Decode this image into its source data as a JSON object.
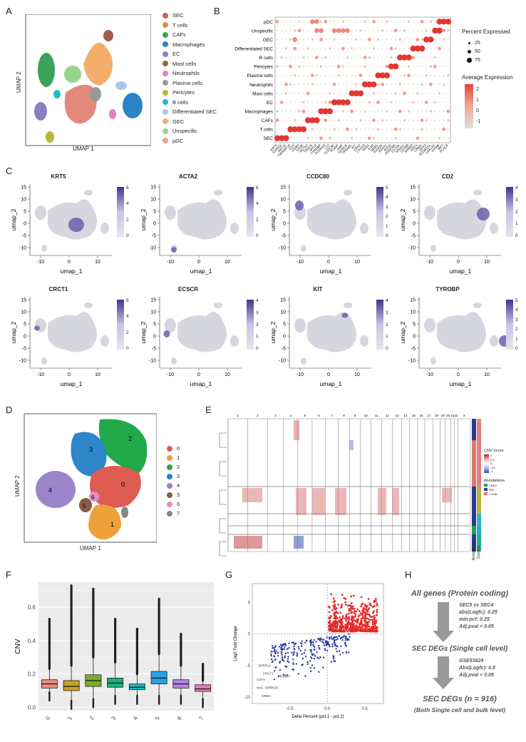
{
  "panels": {
    "A": "A",
    "B": "B",
    "C": "C",
    "D": "D",
    "E": "E",
    "F": "F",
    "G": "G",
    "H": "H"
  },
  "panelA": {
    "xlabel": "UMAP 1",
    "ylabel": "UMAP 2",
    "legend": [
      {
        "label": "SEC",
        "color": "#d9584e"
      },
      {
        "label": "T cells",
        "color": "#e7893c"
      },
      {
        "label": "CAFs",
        "color": "#3aa35a"
      },
      {
        "label": "Macrophages",
        "color": "#2b85c4"
      },
      {
        "label": "EC",
        "color": "#8b7fc2"
      },
      {
        "label": "Mast cells",
        "color": "#9b5f4a"
      },
      {
        "label": "Neutrophils",
        "color": "#e77fc0"
      },
      {
        "label": "Plasma cells",
        "color": "#999999"
      },
      {
        "label": "Pericytes",
        "color": "#b9b736"
      },
      {
        "label": "B cells",
        "color": "#27b8c8"
      },
      {
        "label": "Differentiated SEC",
        "color": "#a9c7ea"
      },
      {
        "label": "GEC",
        "color": "#f4ae6c"
      },
      {
        "label": "Unspecific",
        "color": "#97d48c"
      },
      {
        "label": "pDC",
        "color": "#f09f96"
      }
    ]
  },
  "panelB": {
    "rows": [
      "pDC",
      "Unspecific",
      "GEC",
      "Differentiated SEC",
      "B cells",
      "Pericytes",
      "Plasma cells",
      "Neutrophils",
      "Mast cells",
      "EC",
      "Macrophages",
      "CAFs",
      "T cells",
      "SEC"
    ],
    "genes": [
      "KRT5",
      "S100A2",
      "KRT15",
      "TNFRSF18",
      "CD2",
      "CD3D",
      "CD3E",
      "ACTA2",
      "TAGLN",
      "MYL9",
      "TYROBP",
      "FCER1G",
      "LYZ",
      "CCDC80",
      "PLVAP",
      "VWF",
      "ECSCR",
      "TPSAB1",
      "KIT",
      "CPA3",
      "CXCL8",
      "G0S2",
      "IL1B",
      "MZB1",
      "JCHAIN",
      "IGHG1",
      "RGS5",
      "PDGFRB",
      "CD79A",
      "MS4A1",
      "CD79B",
      "SPRR3",
      "KRT4",
      "CRNN",
      "GPX3",
      "SCGB1A1",
      "LGALS4",
      "GZMB",
      "IRF7",
      "PLAC8"
    ],
    "percent_title": "Percent Expressed",
    "percent_levels": [
      "25",
      "50",
      "75"
    ],
    "expr_title": "Average Expression",
    "expr_ticks": [
      "2",
      "1",
      "0",
      "-1"
    ]
  },
  "panelC": {
    "genes": [
      {
        "name": "KRT5",
        "ticks": [
          "6",
          "4",
          "2",
          "0"
        ]
      },
      {
        "name": "ACTA2",
        "ticks": [
          "6",
          "4",
          "2",
          "0"
        ]
      },
      {
        "name": "CCDC80",
        "ticks": [
          "5",
          "4",
          "3",
          "2",
          "1",
          "0"
        ]
      },
      {
        "name": "CD2",
        "ticks": [
          "4",
          "3",
          "2",
          "1",
          "0"
        ]
      },
      {
        "name": "CRCT1",
        "ticks": [
          "6",
          "4",
          "2",
          "0"
        ]
      },
      {
        "name": "ECSCR",
        "ticks": [
          "4",
          "3",
          "2",
          "1",
          "0"
        ]
      },
      {
        "name": "KIT",
        "ticks": [
          "4",
          "3",
          "2",
          "1",
          "0"
        ]
      },
      {
        "name": "TYROBP",
        "ticks": [
          "5",
          "4",
          "3",
          "2",
          "1",
          "0"
        ]
      }
    ],
    "xlabel": "umap_1",
    "ylabel": "umap_2",
    "yticks": [
      "15",
      "10",
      "5",
      "0",
      "-5",
      "-10"
    ],
    "xticks": [
      "-10",
      "0",
      "10"
    ]
  },
  "panelD": {
    "xlabel": "UMAP 1",
    "ylabel": "UMAP 2",
    "clusters": [
      {
        "id": "0",
        "color": "#de5b52"
      },
      {
        "id": "1",
        "color": "#f0a03a"
      },
      {
        "id": "2",
        "color": "#22aa4a"
      },
      {
        "id": "3",
        "color": "#2c86c7"
      },
      {
        "id": "4",
        "color": "#9b84c8"
      },
      {
        "id": "5",
        "color": "#8a5a48"
      },
      {
        "id": "6",
        "color": "#e58ec4"
      },
      {
        "id": "7",
        "color": "#7f8a80"
      }
    ]
  },
  "panelE": {
    "chromosomes": [
      "1",
      "2",
      "3",
      "4",
      "5",
      "6",
      "7",
      "8",
      "9",
      "10",
      "11",
      "12",
      "13",
      "14",
      "15",
      "16",
      "17",
      "18",
      "19",
      "20",
      "21",
      "22",
      "X"
    ],
    "legend_title": "CNV Score",
    "legend_ticks": [
      "1",
      "0.5",
      "0",
      "-0.5",
      "-1"
    ],
    "annot_title": "Annotations",
    "annot_items": [
      "GSE0",
      "SEC",
      "T cells"
    ],
    "bottom_labels": [
      "Annotations",
      "Clusters"
    ]
  },
  "chart_data": [
    {
      "type": "box",
      "title": "",
      "xlabel": "",
      "ylabel": "CNV",
      "ylim": [
        -0.02,
        0.75
      ],
      "yticks": [
        "0.0",
        "0.2",
        "0.4",
        "0.6"
      ],
      "categories": [
        "0",
        "1",
        "2",
        "3",
        "4",
        "5",
        "6",
        "7"
      ],
      "colors": [
        "#ef8a80",
        "#c8a026",
        "#7cad28",
        "#20b07a",
        "#1ab8c0",
        "#26a2e8",
        "#b583e6",
        "#ef76c4"
      ],
      "series": [
        {
          "name": "q1",
          "values": [
            0.115,
            0.1,
            0.125,
            0.12,
            0.105,
            0.14,
            0.115,
            0.095
          ]
        },
        {
          "name": "median",
          "values": [
            0.14,
            0.125,
            0.16,
            0.145,
            0.12,
            0.175,
            0.14,
            0.11
          ]
        },
        {
          "name": "q3",
          "values": [
            0.165,
            0.16,
            0.195,
            0.175,
            0.14,
            0.215,
            0.165,
            0.135
          ]
        },
        {
          "name": "whisker_low",
          "values": [
            0.09,
            0.04,
            0.05,
            0.07,
            0.07,
            0.07,
            0.07,
            0.05
          ]
        },
        {
          "name": "whisker_high",
          "values": [
            0.23,
            0.25,
            0.3,
            0.27,
            0.2,
            0.32,
            0.25,
            0.16
          ]
        },
        {
          "name": "max",
          "values": [
            0.53,
            0.73,
            0.71,
            0.53,
            0.47,
            0.65,
            0.44,
            0.26
          ]
        }
      ]
    },
    {
      "type": "scatter",
      "title": "",
      "xlabel": "Delta Percent (pct.1 - pct.2)",
      "ylabel": "Log2 Fold Change",
      "xlim": [
        -1.0,
        0.75
      ],
      "ylim": [
        -11,
        8
      ],
      "xticks": [
        "-0.5",
        "0.0",
        "0.5"
      ],
      "yticks": [
        "5",
        "0",
        "-5",
        "-10"
      ],
      "labels": [
        "SPRR1A",
        "CRCT1",
        "PRSS27",
        "CSTA",
        "MAL",
        "SPRR2B",
        "CRNN"
      ]
    }
  ],
  "panelH": {
    "step1": "All genes (Protein coding)",
    "crit1": [
      "SEC5 vs SEC4",
      "abs(Logfc): 0.25",
      "min.pct: 0.25",
      "Adj.pval < 0.05"
    ],
    "step2": "SEC DEGs (Single cell level)",
    "crit2": [
      "GSE53624",
      "Abs(Logfc): 0.5",
      "Adj.pval < 0.05"
    ],
    "step3": "SEC DEGs (n = 916)",
    "step3b": "(Both Single cell and bulk level)"
  }
}
